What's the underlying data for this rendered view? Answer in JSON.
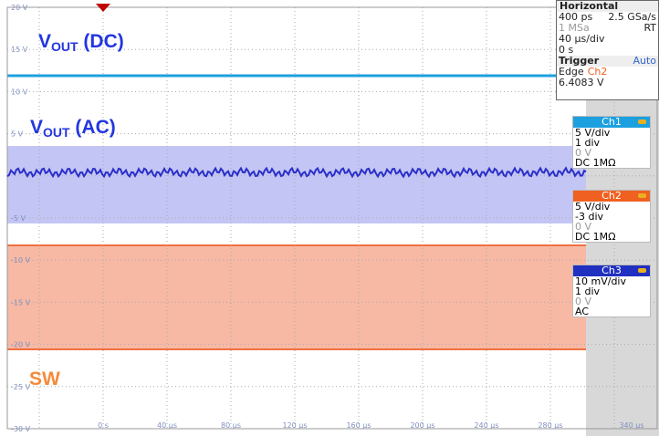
{
  "axes": {
    "y_labels_upper": [
      "20 V",
      "15 V",
      "10 V",
      "5 V"
    ],
    "y_labels_lower": [
      "-5 V",
      "-10 V",
      "-15 V",
      "-20 V",
      "-25 V",
      "-30 V"
    ],
    "x_labels": [
      "0 s",
      "40 µs",
      "80 µs",
      "120 µs",
      "160 µs",
      "200 µs",
      "240 µs",
      "280 µs"
    ],
    "x_label_beyond": "340 µs"
  },
  "annotations": {
    "vout_dc": {
      "main": "V",
      "sub": "OUT",
      "rest": " (DC)"
    },
    "vout_ac": {
      "main": "V",
      "sub": "OUT",
      "rest": " (AC)"
    },
    "sw": "SW"
  },
  "horizontal": {
    "title": "Horizontal",
    "resolution": "400 ps",
    "sample_rate": "2.5 GSa/s",
    "record": "1 MSa",
    "mode": "RT",
    "time_scale": "40 µs/div",
    "position": "0 s"
  },
  "trigger": {
    "title": "Trigger",
    "mode": "Auto",
    "type": "Edge",
    "source": "Ch2",
    "level": "6.4083 V"
  },
  "channels": [
    {
      "name": "Ch1",
      "scale": "5 V/div",
      "offset": "1 div",
      "position": "0 V",
      "coupling": "DC 1MΩ"
    },
    {
      "name": "Ch2",
      "scale": "5 V/div",
      "offset": "-3 div",
      "position": "0 V",
      "coupling": "DC 1MΩ"
    },
    {
      "name": "Ch3",
      "scale": "10 mV/div",
      "offset": "1 div",
      "position": "0 V",
      "coupling": "AC"
    }
  ]
}
